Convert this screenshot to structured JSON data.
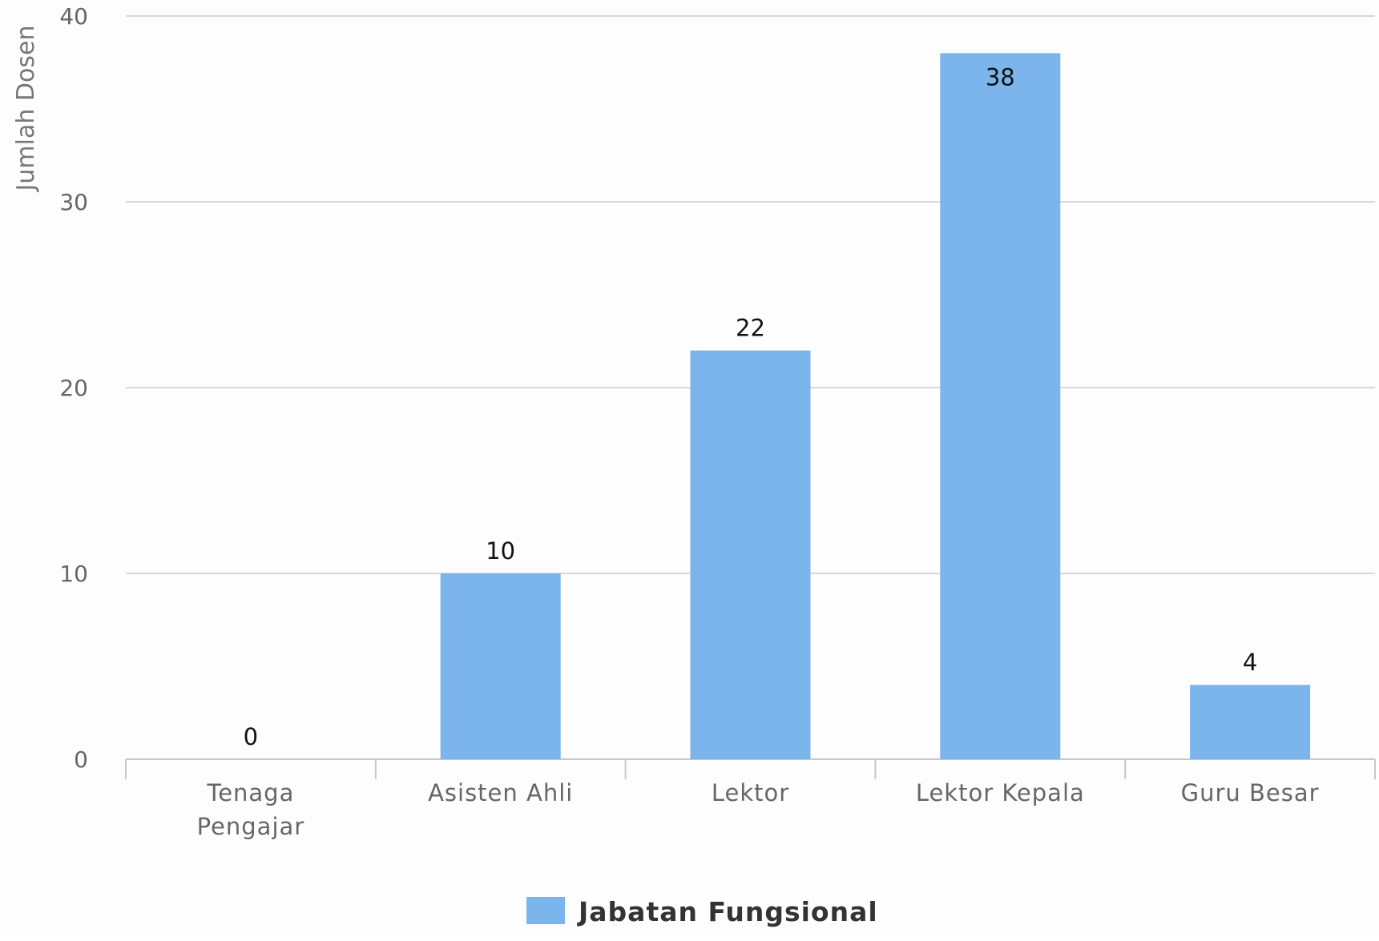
{
  "chart_data": {
    "type": "bar",
    "title": "",
    "xlabel": "",
    "ylabel": "Jumlah Dosen",
    "categories": [
      [
        "Tenaga",
        "Pengajar"
      ],
      [
        "Asisten Ahli"
      ],
      [
        "Lektor"
      ],
      [
        "Lektor Kepala"
      ],
      [
        "Guru Besar"
      ]
    ],
    "series": [
      {
        "name": "Jabatan Fungsional",
        "values": [
          0,
          10,
          22,
          38,
          4
        ],
        "color": "#7cb5ec"
      }
    ],
    "ylim": [
      0,
      40
    ],
    "yticks": [
      0,
      10,
      20,
      30,
      40
    ],
    "grid": true,
    "legend": "bottom-center",
    "data_labels": true
  }
}
